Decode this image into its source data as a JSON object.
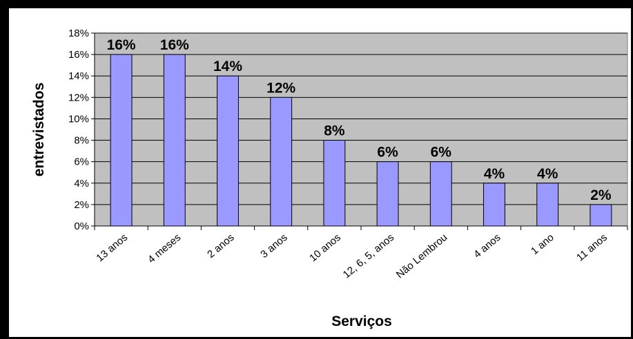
{
  "chart_data": {
    "type": "bar",
    "categories": [
      "13 anos",
      "4 meses",
      "2 anos",
      "3 anos",
      "10 anos",
      "12, 6, 5, anos",
      "Não Lembrou",
      "4 anos",
      "1 ano",
      "11 anos"
    ],
    "values": [
      16,
      16,
      14,
      12,
      8,
      6,
      6,
      4,
      4,
      2
    ],
    "data_labels": [
      "16%",
      "16%",
      "14%",
      "12%",
      "8%",
      "6%",
      "6%",
      "4%",
      "4%",
      "2%"
    ],
    "xlabel": "Serviços",
    "ylabel": "entrevistados",
    "ylim": [
      0,
      18
    ],
    "yticks": [
      "0%",
      "2%",
      "4%",
      "6%",
      "8%",
      "10%",
      "12%",
      "14%",
      "16%",
      "18%"
    ],
    "grid": true,
    "legend": "none",
    "colors": {
      "bar_fill": "#9999ff",
      "bar_stroke": "#000000",
      "plot_background": "#c0c0c0",
      "gridline": "#000000"
    }
  }
}
